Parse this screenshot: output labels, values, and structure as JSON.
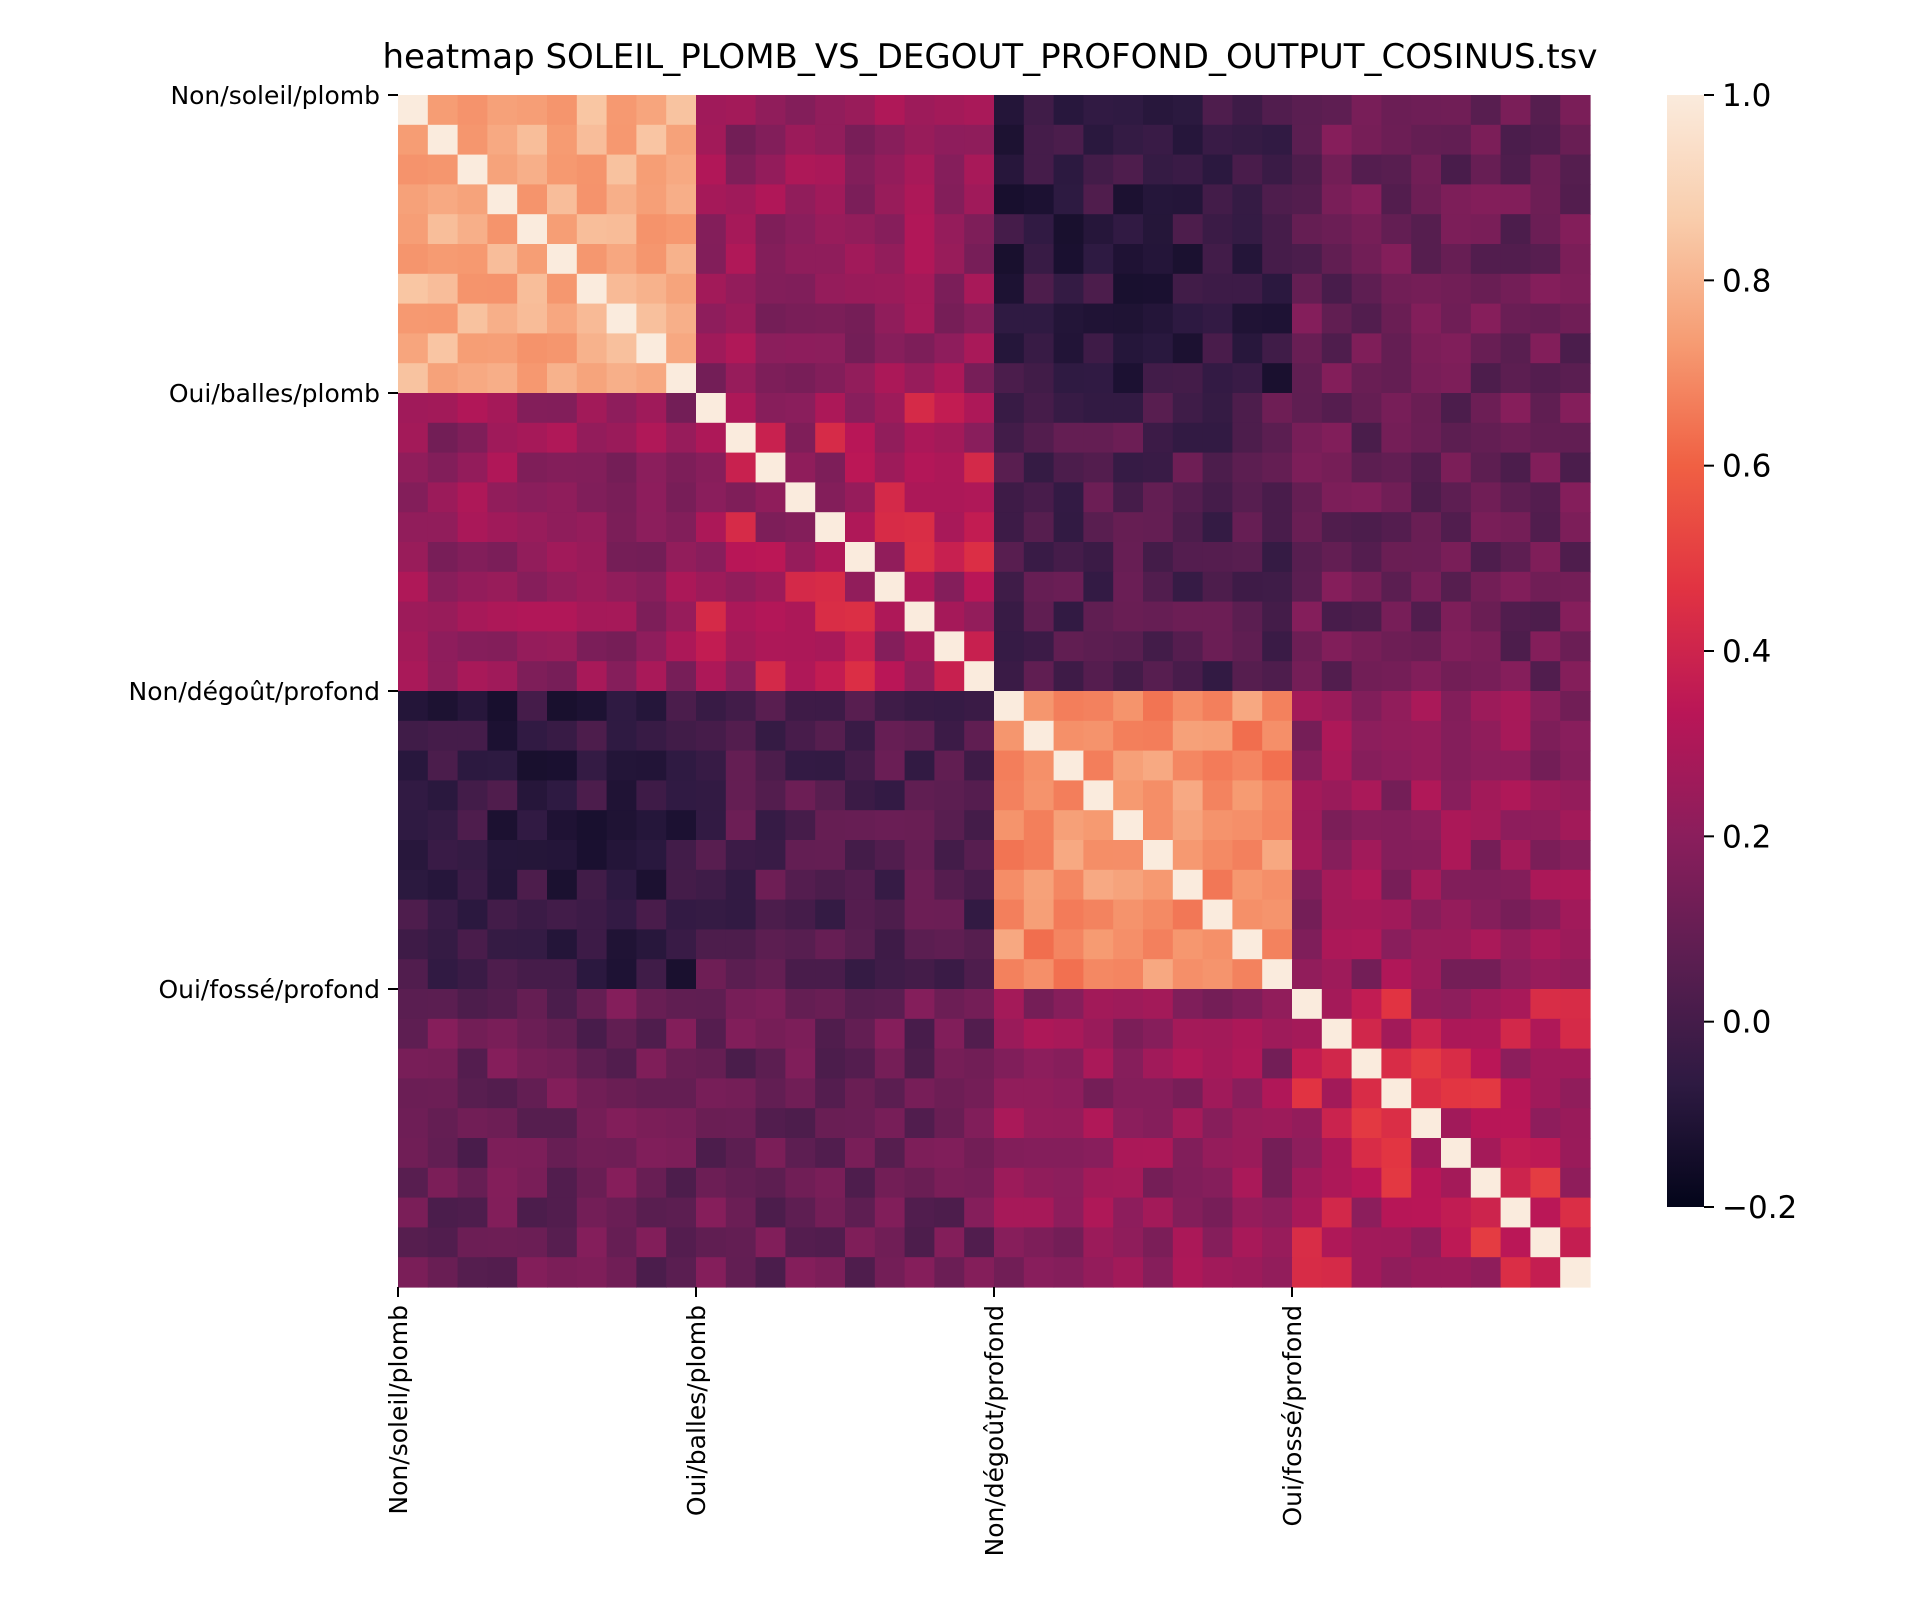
{
  "chart_data": {
    "type": "heatmap",
    "title": "heatmap SOLEIL_PLOMB_VS_DEGOUT_PROFOND_OUTPUT_COSINUS.tsv",
    "n": 40,
    "row_tick_labels": [
      {
        "index": 0,
        "label": "Non/soleil/plomb"
      },
      {
        "index": 10,
        "label": "Oui/balles/plomb"
      },
      {
        "index": 20,
        "label": "Non/dégoût/profond"
      },
      {
        "index": 30,
        "label": "Oui/fossé/profond"
      }
    ],
    "col_tick_labels": [
      {
        "index": 0,
        "label": "Non/soleil/plomb"
      },
      {
        "index": 10,
        "label": "Oui/balles/plomb"
      },
      {
        "index": 20,
        "label": "Non/dégoût/profond"
      },
      {
        "index": 30,
        "label": "Oui/fossé/profond"
      }
    ],
    "colorbar": {
      "vmin": -0.2,
      "vmax": 1.0,
      "ticks": [
        "1.0",
        "0.8",
        "0.6",
        "0.4",
        "0.2",
        "0.0",
        "−0.2"
      ],
      "tick_values": [
        1.0,
        0.8,
        0.6,
        0.4,
        0.2,
        0.0,
        -0.2
      ]
    },
    "colormap": [
      "#03051a",
      "#2e1a42",
      "#5b1e51",
      "#8a1e5c",
      "#b91657",
      "#e13342",
      "#f06043",
      "#f69c73",
      "#f9cdac",
      "#faebdd"
    ],
    "blocks": [
      {
        "name": "Non/soleil/plomb",
        "start": 0,
        "end": 10,
        "within": 0.78
      },
      {
        "name": "Oui/balles/plomb",
        "start": 10,
        "end": 20,
        "within": 0.3
      },
      {
        "name": "Non/dégoût/profond",
        "start": 20,
        "end": 30,
        "within": 0.7
      },
      {
        "name": "Oui/fossé/profond",
        "start": 30,
        "end": 40,
        "within": 0.35
      }
    ],
    "between_block_mean": {
      "soleil-balles": 0.22,
      "soleil-degout": -0.05,
      "soleil-fosse": 0.1,
      "balles-degout": 0.03,
      "balles-fosse": 0.1,
      "degout-fosse": 0.22
    },
    "diagonal": 1.0,
    "grid": false
  }
}
